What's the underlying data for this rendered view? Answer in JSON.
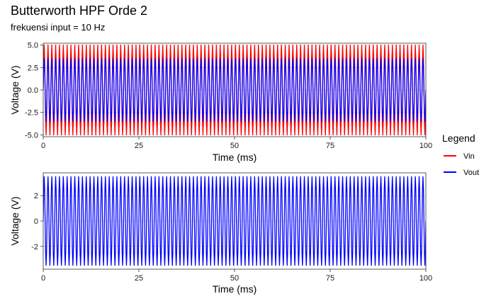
{
  "chart_data": {
    "type": "line",
    "title": "Butterworth HPF Orde 2",
    "subtitle": "frekuensi input = 10 Hz",
    "legend": {
      "title": "Legend",
      "position": "right",
      "entries": [
        {
          "name": "Vin",
          "color": "#ff0000"
        },
        {
          "name": "Vout",
          "color": "#0000ff"
        }
      ]
    },
    "panels": [
      {
        "xlabel": "Time (ms)",
        "ylabel": "Voltage (V)",
        "xlim": [
          0,
          100
        ],
        "ylim": [
          -5.2,
          5.2
        ],
        "xticks": [
          0,
          25,
          50,
          75,
          100
        ],
        "xtick_labels": [
          "0",
          "25",
          "50",
          "75",
          "100"
        ],
        "yticks": [
          -5,
          -2.5,
          0,
          2.5,
          5
        ],
        "ytick_labels": [
          "-5.0",
          "-2.5",
          "0.0",
          "2.5",
          "5.0"
        ],
        "grid": true,
        "series": [
          {
            "name": "Vin",
            "color": "#ff0000",
            "amplitude": 5,
            "frequency": 10,
            "x_start": 0,
            "x_end": 100,
            "cycles_shown": 100
          },
          {
            "name": "Vout",
            "color": "#0000ff",
            "amplitude": 3.5,
            "frequency": 10,
            "x_start": 0,
            "x_end": 100,
            "cycles_shown": 100
          }
        ]
      },
      {
        "xlabel": "Time (ms)",
        "ylabel": "Voltage (V)",
        "xlim": [
          0,
          100
        ],
        "ylim": [
          -3.8,
          3.8
        ],
        "xticks": [
          0,
          25,
          50,
          75,
          100
        ],
        "xtick_labels": [
          "0",
          "25",
          "50",
          "75",
          "100"
        ],
        "yticks": [
          -2,
          0,
          2
        ],
        "ytick_labels": [
          "-2",
          "0",
          "2"
        ],
        "grid": true,
        "series": [
          {
            "name": "Vout",
            "color": "#0000ff",
            "amplitude": 3.5,
            "frequency": 10,
            "x_start": 0,
            "x_end": 100,
            "cycles_shown": 100
          }
        ]
      }
    ]
  }
}
